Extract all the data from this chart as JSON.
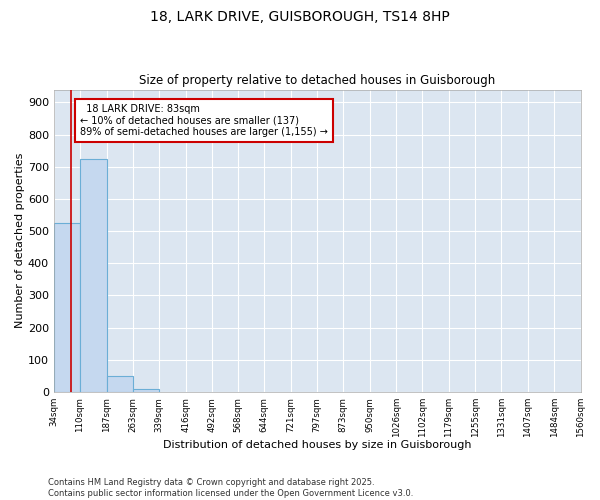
{
  "title1": "18, LARK DRIVE, GUISBOROUGH, TS14 8HP",
  "title2": "Size of property relative to detached houses in Guisborough",
  "xlabel": "Distribution of detached houses by size in Guisborough",
  "ylabel": "Number of detached properties",
  "bin_edges": [
    34,
    110,
    187,
    263,
    339,
    416,
    492,
    568,
    644,
    721,
    797,
    873,
    950,
    1026,
    1102,
    1179,
    1255,
    1331,
    1407,
    1484,
    1560
  ],
  "bar_heights": [
    525,
    725,
    50,
    10,
    0,
    0,
    0,
    0,
    0,
    0,
    0,
    0,
    0,
    0,
    0,
    0,
    0,
    0,
    0,
    0
  ],
  "bar_color": "#c5d8ef",
  "bar_edge_color": "#6baed6",
  "property_size": 83,
  "annotation_title": "18 LARK DRIVE: 83sqm",
  "annotation_line1": "← 10% of detached houses are smaller (137)",
  "annotation_line2": "89% of semi-detached houses are larger (1,155) →",
  "red_line_color": "#cc0000",
  "annotation_box_color": "#cc0000",
  "ylim": [
    0,
    940
  ],
  "yticks": [
    0,
    100,
    200,
    300,
    400,
    500,
    600,
    700,
    800,
    900
  ],
  "background_color": "#dce6f1",
  "grid_color": "#ffffff",
  "footer1": "Contains HM Land Registry data © Crown copyright and database right 2025.",
  "footer2": "Contains public sector information licensed under the Open Government Licence v3.0."
}
